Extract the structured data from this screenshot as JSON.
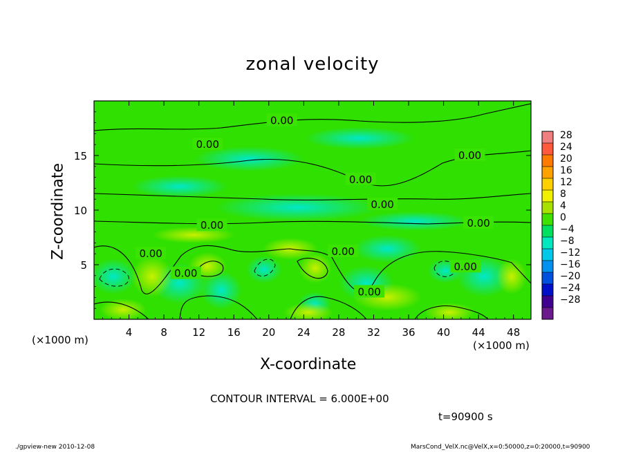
{
  "chart_data": {
    "type": "contour",
    "title": "zonal velocity",
    "xlabel": "X-coordinate",
    "ylabel": "Z-coordinate",
    "x_unit_label": "(×1000 m)",
    "y_unit_label": "(×1000 m)",
    "xlim": [
      0,
      50
    ],
    "ylim": [
      0,
      20
    ],
    "x_ticks": [
      4,
      8,
      12,
      16,
      20,
      24,
      28,
      32,
      36,
      40,
      44,
      48
    ],
    "y_ticks": [
      5,
      10,
      15
    ],
    "contour_interval_text": "CONTOUR INTERVAL = 6.000E+00",
    "contour_labels": [
      {
        "text": "0.00",
        "x": 21.5,
        "z": 18.2
      },
      {
        "text": "0.00",
        "x": 13.0,
        "z": 16.0
      },
      {
        "text": "0.00",
        "x": 43.0,
        "z": 15.0
      },
      {
        "text": "0.00",
        "x": 30.5,
        "z": 12.8
      },
      {
        "text": "0.00",
        "x": 33.0,
        "z": 10.5
      },
      {
        "text": "0.00",
        "x": 13.5,
        "z": 8.6
      },
      {
        "text": "0.00",
        "x": 44.0,
        "z": 8.8
      },
      {
        "text": "0.00",
        "x": 6.5,
        "z": 6.0
      },
      {
        "text": "0.00",
        "x": 28.5,
        "z": 6.2
      },
      {
        "text": "0.00",
        "x": 10.5,
        "z": 4.2
      },
      {
        "text": "0.00",
        "x": 31.5,
        "z": 2.5
      },
      {
        "text": "0.00",
        "x": 42.5,
        "z": 4.8
      }
    ],
    "colorbar": {
      "levels": [
        28,
        24,
        20,
        16,
        12,
        8,
        4,
        0,
        -4,
        -8,
        -12,
        -16,
        -20,
        -24,
        -28
      ],
      "colors": [
        "#f08080",
        "#ff5a3c",
        "#ff7a00",
        "#ffa200",
        "#ffd000",
        "#f0f000",
        "#a8e000",
        "#40e000",
        "#00e060",
        "#00e8c0",
        "#00c8e8",
        "#0090f0",
        "#0050e0",
        "#0010c8",
        "#400090",
        "#6a1a8c"
      ]
    }
  },
  "footer": {
    "time": "t=90900 s",
    "left_note": "./gpview-new  2010-12-08",
    "right_note": "MarsCond_VelX.nc@VelX,x=0:50000,z=0:20000,t=90900"
  }
}
